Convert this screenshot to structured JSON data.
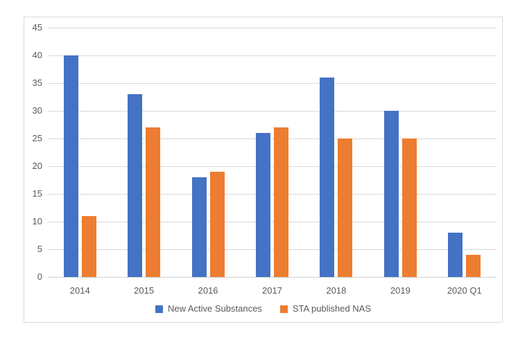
{
  "chart_data": {
    "type": "bar",
    "title": "",
    "xlabel": "",
    "ylabel": "",
    "categories": [
      "2014",
      "2015",
      "2016",
      "2017",
      "2018",
      "2019",
      "2020 Q1"
    ],
    "series": [
      {
        "name": "New Active Substances",
        "color": "#4472C4",
        "values": [
          40,
          33,
          18,
          26,
          36,
          30,
          8
        ]
      },
      {
        "name": "STA published NAS",
        "color": "#ED7D31",
        "values": [
          11,
          27,
          19,
          27,
          25,
          25,
          4
        ]
      }
    ],
    "ylim": [
      0,
      45
    ],
    "ytick_step": 5,
    "ytick_labels": [
      "0",
      "5",
      "10",
      "15",
      "20",
      "25",
      "30",
      "35",
      "40",
      "45"
    ],
    "grid": true,
    "legend_position": "bottom"
  },
  "colors": {
    "series_blue": "#4472C4",
    "series_orange": "#ED7D31",
    "gridline": "#d9d9d9",
    "frame_border": "#d9d9d9",
    "text": "#595959",
    "background": "#ffffff"
  }
}
